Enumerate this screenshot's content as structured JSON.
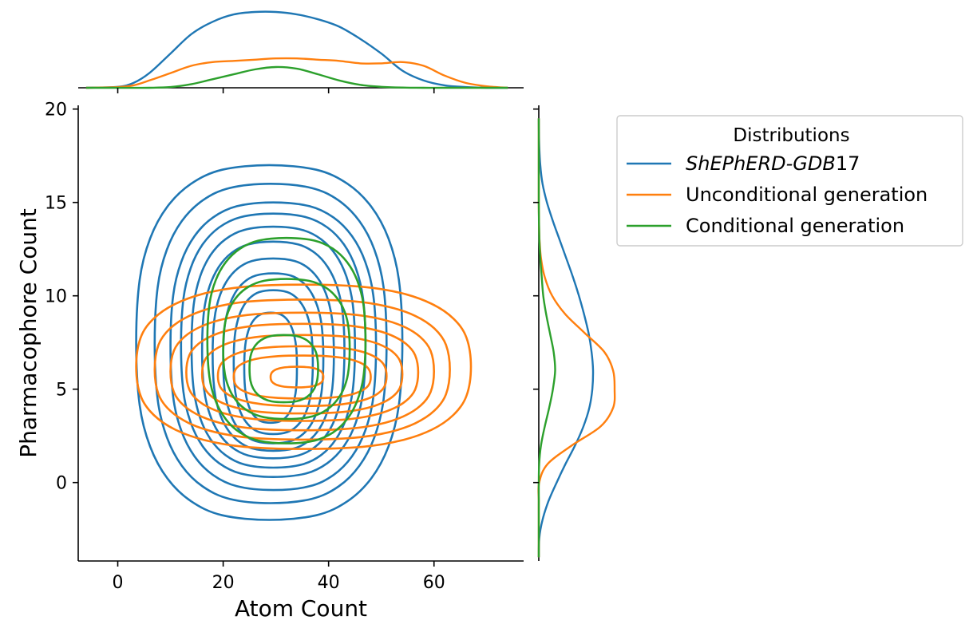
{
  "chart_data": {
    "type": "kde-jointplot",
    "xlabel": "Atom Count",
    "ylabel": "Pharmacophore Count",
    "xlim": [
      -7.5,
      77
    ],
    "ylim": [
      -4.2,
      20.2
    ],
    "xticks": [
      0,
      20,
      40,
      60
    ],
    "yticks": [
      0,
      5,
      10,
      15,
      20
    ],
    "grid": false,
    "legend": {
      "title": "Distributions",
      "placement": "outside-top-right"
    },
    "series": [
      {
        "name_prefix": "ShEPhERD-GDB",
        "name_suffix": "17",
        "color": "#1f77b4",
        "kde2d": {
          "center": [
            28,
            7.3
          ],
          "levels": [
            {
              "x_range": [
                3.5,
                54
              ],
              "y_range": [
                -2.0,
                17.0
              ]
            },
            {
              "x_range": [
                7,
                51
              ],
              "y_range": [
                -1.1,
                16.0
              ]
            },
            {
              "x_range": [
                10,
                49
              ],
              "y_range": [
                -0.4,
                15.0
              ]
            },
            {
              "x_range": [
                12,
                47
              ],
              "y_range": [
                0.3,
                14.4
              ]
            },
            {
              "x_range": [
                14,
                45
              ],
              "y_range": [
                0.8,
                13.7
              ]
            },
            {
              "x_range": [
                16,
                43
              ],
              "y_range": [
                1.3,
                12.9
              ]
            },
            {
              "x_range": [
                18,
                41
              ],
              "y_range": [
                1.7,
                12.0
              ]
            },
            {
              "x_range": [
                20,
                39
              ],
              "y_range": [
                2.1,
                11.2
              ]
            },
            {
              "x_range": [
                22,
                37
              ],
              "y_range": [
                2.6,
                10.3
              ]
            },
            {
              "x_range": [
                24,
                34
              ],
              "y_range": [
                3.2,
                9.1
              ]
            }
          ]
        },
        "marginal_x": {
          "x": [
            -6,
            0,
            3,
            6,
            10,
            14,
            18,
            22,
            26,
            30,
            34,
            38,
            42,
            46,
            50,
            54,
            58,
            62,
            66,
            70,
            74
          ],
          "density": [
            0.0,
            0.0004,
            0.002,
            0.006,
            0.014,
            0.022,
            0.027,
            0.03,
            0.031,
            0.031,
            0.03,
            0.028,
            0.025,
            0.02,
            0.014,
            0.007,
            0.003,
            0.001,
            0.0003,
            0.0,
            0.0
          ]
        },
        "marginal_y": {
          "y": [
            -4,
            -3,
            -2,
            -1,
            0,
            1,
            2,
            3,
            4,
            5,
            6,
            7,
            8,
            9,
            10,
            11,
            12,
            13,
            14,
            15,
            16,
            17,
            18,
            19,
            19.5
          ],
          "density": [
            0.0,
            0.0006,
            0.005,
            0.013,
            0.024,
            0.036,
            0.049,
            0.06,
            0.068,
            0.072,
            0.073,
            0.071,
            0.067,
            0.061,
            0.054,
            0.046,
            0.037,
            0.028,
            0.019,
            0.011,
            0.005,
            0.002,
            0.0006,
            0.0001,
            0.0
          ]
        }
      },
      {
        "name": "Unconditional generation",
        "color": "#ff7f0e",
        "kde2d": {
          "center": [
            36,
            5.7
          ],
          "levels": [
            {
              "x_range": [
                3.5,
                67
              ],
              "y_range": [
                1.8,
                10.6
              ]
            },
            {
              "x_range": [
                7,
                63
              ],
              "y_range": [
                2.3,
                9.8
              ]
            },
            {
              "x_range": [
                10,
                60
              ],
              "y_range": [
                2.8,
                9.1
              ]
            },
            {
              "x_range": [
                13,
                57
              ],
              "y_range": [
                3.3,
                8.5
              ]
            },
            {
              "x_range": [
                16,
                54
              ],
              "y_range": [
                3.7,
                7.9
              ]
            },
            {
              "x_range": [
                19,
                51
              ],
              "y_range": [
                4.1,
                7.3
              ]
            },
            {
              "x_range": [
                22,
                48
              ],
              "y_range": [
                4.5,
                6.8
              ]
            },
            {
              "x_range": [
                29,
                39
              ],
              "y_range": [
                5.1,
                6.2
              ]
            }
          ]
        },
        "marginal_x": {
          "x": [
            -6,
            0,
            3,
            6,
            10,
            14,
            18,
            22,
            26,
            30,
            34,
            38,
            42,
            46,
            50,
            54,
            58,
            62,
            66,
            70,
            74
          ],
          "density": [
            0.0,
            0.0003,
            0.001,
            0.003,
            0.006,
            0.009,
            0.0105,
            0.011,
            0.0115,
            0.012,
            0.012,
            0.0115,
            0.011,
            0.01,
            0.01,
            0.0105,
            0.009,
            0.005,
            0.002,
            0.0006,
            0.0
          ]
        },
        "marginal_y": {
          "y": [
            -4,
            -3,
            -2,
            -1,
            0,
            1,
            2,
            3,
            4,
            5,
            6,
            7,
            8,
            9,
            10,
            11,
            12,
            13,
            14,
            15,
            16,
            17,
            18,
            19,
            19.5
          ],
          "density": [
            0.0,
            0.0,
            0.0,
            0.0,
            0.0005,
            0.012,
            0.045,
            0.083,
            0.1,
            0.102,
            0.1,
            0.088,
            0.062,
            0.036,
            0.018,
            0.008,
            0.003,
            0.001,
            0.0003,
            0.0,
            0.0,
            0.0,
            0.0,
            0.0,
            0.0
          ]
        }
      },
      {
        "name": "Conditional generation",
        "color": "#2ca02c",
        "kde2d": {
          "center": [
            32,
            6.5
          ],
          "levels": [
            {
              "x_range": [
                17,
                47
              ],
              "y_range": [
                2.1,
                13.1
              ]
            },
            {
              "x_range": [
                20,
                44
              ],
              "y_range": [
                3.4,
                10.9
              ]
            },
            {
              "x_range": [
                25,
                38
              ],
              "y_range": [
                4.3,
                7.9
              ]
            }
          ]
        },
        "marginal_x": {
          "x": [
            -6,
            0,
            6,
            10,
            14,
            18,
            22,
            26,
            30,
            34,
            38,
            42,
            46,
            50,
            54,
            58,
            62,
            70,
            74
          ],
          "density": [
            0.0,
            0.0,
            0.0,
            0.0003,
            0.0015,
            0.0035,
            0.0055,
            0.0075,
            0.0085,
            0.0078,
            0.0055,
            0.003,
            0.0012,
            0.0004,
            0.0001,
            0.0,
            0.0,
            0.0,
            0.0
          ]
        },
        "marginal_y": {
          "y": [
            -4,
            -3,
            -2,
            -1,
            0,
            1,
            2,
            3,
            4,
            5,
            6,
            7,
            8,
            9,
            10,
            11,
            12,
            13,
            14,
            15,
            16,
            17,
            18,
            19,
            19.5
          ],
          "density": [
            0.0,
            0.0,
            0.0,
            0.0,
            0.0,
            0.0005,
            0.003,
            0.008,
            0.014,
            0.019,
            0.022,
            0.02,
            0.015,
            0.01,
            0.006,
            0.004,
            0.002,
            0.0008,
            0.0002,
            0.0,
            0.0,
            0.0,
            0.0,
            0.0,
            0.0
          ]
        }
      }
    ]
  }
}
